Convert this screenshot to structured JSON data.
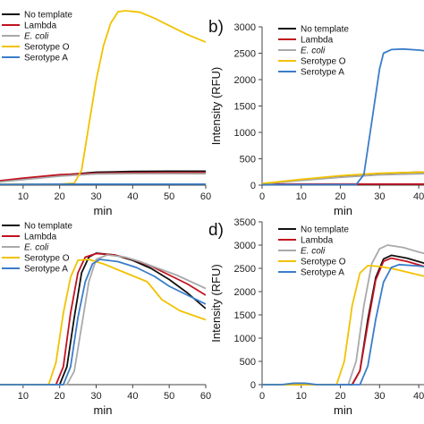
{
  "chart_data": [
    {
      "panel_label": "",
      "type": "line",
      "xlabel": "min",
      "ylabel": "",
      "xlim": [
        0,
        60
      ],
      "ylim": [
        0,
        3500
      ],
      "xticks": [
        10,
        20,
        30,
        40,
        50,
        60
      ],
      "yticks": [],
      "legend": "top-left",
      "series": [
        {
          "name": "No template",
          "color": "#111111",
          "points": [
            [
              0,
              50
            ],
            [
              10,
              120
            ],
            [
              20,
              200
            ],
            [
              30,
              260
            ],
            [
              40,
              275
            ],
            [
              50,
              280
            ],
            [
              60,
              280
            ]
          ]
        },
        {
          "name": "Lambda",
          "color": "#c1121f",
          "points": [
            [
              0,
              60
            ],
            [
              10,
              140
            ],
            [
              20,
              210
            ],
            [
              30,
              240
            ],
            [
              40,
              250
            ],
            [
              50,
              252
            ],
            [
              60,
              252
            ]
          ]
        },
        {
          "name": "E. coli",
          "color": "#a9a9a9",
          "points": [
            [
              0,
              40
            ],
            [
              10,
              110
            ],
            [
              20,
              180
            ],
            [
              30,
              225
            ],
            [
              40,
              232
            ],
            [
              50,
              232
            ],
            [
              60,
              230
            ]
          ]
        },
        {
          "name": "Serotype O",
          "color": "#f2c200",
          "points": [
            [
              0,
              20
            ],
            [
              20,
              20
            ],
            [
              24,
              40
            ],
            [
              26,
              300
            ],
            [
              28,
              1200
            ],
            [
              30,
              2100
            ],
            [
              32,
              2800
            ],
            [
              34,
              3250
            ],
            [
              36,
              3480
            ],
            [
              38,
              3500
            ],
            [
              42,
              3470
            ],
            [
              46,
              3350
            ],
            [
              50,
              3200
            ],
            [
              55,
              3020
            ],
            [
              60,
              2870
            ]
          ]
        },
        {
          "name": "Serotype A",
          "color": "#3a7dc9",
          "points": [
            [
              0,
              15
            ],
            [
              20,
              20
            ],
            [
              40,
              20
            ],
            [
              60,
              20
            ]
          ]
        }
      ]
    },
    {
      "panel_label": "b)",
      "type": "line",
      "xlabel": "min",
      "ylabel": "Intensity (RFU)",
      "xlim": [
        0,
        45
      ],
      "ylim": [
        0,
        3000
      ],
      "xticks": [
        0,
        10,
        20,
        30,
        40
      ],
      "yticks": [
        0,
        500,
        1000,
        1500,
        2000,
        2500,
        3000
      ],
      "legend": "top-left",
      "series": [
        {
          "name": "No template",
          "color": "#111111",
          "points": [
            [
              0,
              20
            ],
            [
              10,
              100
            ],
            [
              20,
              170
            ],
            [
              30,
              220
            ],
            [
              40,
              245
            ],
            [
              45,
              250
            ]
          ]
        },
        {
          "name": "Lambda",
          "color": "#c1121f",
          "points": [
            [
              0,
              20
            ],
            [
              10,
              20
            ],
            [
              20,
              20
            ],
            [
              30,
              20
            ],
            [
              45,
              20
            ]
          ]
        },
        {
          "name": "E. coli",
          "color": "#a9a9a9",
          "points": [
            [
              0,
              25
            ],
            [
              10,
              90
            ],
            [
              20,
              150
            ],
            [
              30,
              195
            ],
            [
              40,
              215
            ],
            [
              45,
              222
            ]
          ]
        },
        {
          "name": "Serotype O",
          "color": "#f2c200",
          "points": [
            [
              0,
              30
            ],
            [
              10,
              110
            ],
            [
              20,
              180
            ],
            [
              30,
              225
            ],
            [
              40,
              245
            ],
            [
              45,
              250
            ]
          ]
        },
        {
          "name": "Serotype A",
          "color": "#3a7dc9",
          "points": [
            [
              0,
              10
            ],
            [
              24,
              10
            ],
            [
              26,
              200
            ],
            [
              28,
              1200
            ],
            [
              30,
              2200
            ],
            [
              31,
              2500
            ],
            [
              33,
              2570
            ],
            [
              36,
              2580
            ],
            [
              40,
              2560
            ],
            [
              45,
              2520
            ]
          ]
        }
      ]
    },
    {
      "panel_label": "",
      "type": "line",
      "xlabel": "min",
      "ylabel": "",
      "xlim": [
        0,
        60
      ],
      "ylim": [
        0,
        3500
      ],
      "xticks": [
        10,
        20,
        30,
        40,
        50,
        60
      ],
      "yticks": [],
      "legend": "top-left",
      "series": [
        {
          "name": "No template",
          "color": "#111111",
          "points": [
            [
              0,
              0
            ],
            [
              20,
              0
            ],
            [
              22,
              400
            ],
            [
              24,
              1500
            ],
            [
              26,
              2500
            ],
            [
              28,
              2850
            ],
            [
              30,
              2940
            ],
            [
              35,
              2900
            ],
            [
              40,
              2780
            ],
            [
              45,
              2600
            ],
            [
              50,
              2350
            ],
            [
              55,
              2050
            ],
            [
              60,
              1700
            ]
          ]
        },
        {
          "name": "Lambda",
          "color": "#c1121f",
          "points": [
            [
              0,
              0
            ],
            [
              19,
              0
            ],
            [
              21,
              400
            ],
            [
              23,
              1600
            ],
            [
              25,
              2500
            ],
            [
              27,
              2850
            ],
            [
              30,
              2930
            ],
            [
              35,
              2900
            ],
            [
              40,
              2800
            ],
            [
              45,
              2650
            ],
            [
              50,
              2450
            ],
            [
              55,
              2250
            ],
            [
              60,
              2000
            ]
          ]
        },
        {
          "name": "E. coli",
          "color": "#a9a9a9",
          "points": [
            [
              0,
              0
            ],
            [
              22,
              0
            ],
            [
              24,
              300
            ],
            [
              26,
              1300
            ],
            [
              28,
              2300
            ],
            [
              30,
              2800
            ],
            [
              33,
              2900
            ],
            [
              38,
              2850
            ],
            [
              42,
              2750
            ],
            [
              47,
              2600
            ],
            [
              52,
              2450
            ],
            [
              56,
              2300
            ],
            [
              60,
              2150
            ]
          ]
        },
        {
          "name": "Serotype O",
          "color": "#f2c200",
          "points": [
            [
              0,
              0
            ],
            [
              17,
              0
            ],
            [
              19,
              500
            ],
            [
              21,
              1600
            ],
            [
              23,
              2400
            ],
            [
              25,
              2780
            ],
            [
              28,
              2800
            ],
            [
              32,
              2700
            ],
            [
              38,
              2500
            ],
            [
              44,
              2300
            ],
            [
              48,
              1900
            ],
            [
              53,
              1650
            ],
            [
              60,
              1450
            ]
          ]
        },
        {
          "name": "Serotype A",
          "color": "#3a7dc9",
          "points": [
            [
              0,
              0
            ],
            [
              21,
              0
            ],
            [
              23,
              400
            ],
            [
              25,
              1500
            ],
            [
              27,
              2300
            ],
            [
              29,
              2700
            ],
            [
              31,
              2800
            ],
            [
              36,
              2750
            ],
            [
              41,
              2620
            ],
            [
              46,
              2420
            ],
            [
              50,
              2200
            ],
            [
              55,
              2000
            ],
            [
              60,
              1800
            ]
          ]
        }
      ]
    },
    {
      "panel_label": "d)",
      "type": "line",
      "xlabel": "min",
      "ylabel": "Intensity (RFU)",
      "xlim": [
        0,
        45
      ],
      "ylim": [
        0,
        3500
      ],
      "xticks": [
        0,
        10,
        20,
        30,
        40
      ],
      "yticks": [
        0,
        500,
        1000,
        1500,
        2000,
        2500,
        3000,
        3500
      ],
      "legend": "top-left",
      "series": [
        {
          "name": "No template",
          "color": "#111111",
          "points": [
            [
              0,
              0
            ],
            [
              23,
              0
            ],
            [
              25,
              300
            ],
            [
              27,
              1400
            ],
            [
              29,
              2300
            ],
            [
              31,
              2700
            ],
            [
              33,
              2780
            ],
            [
              37,
              2720
            ],
            [
              41,
              2620
            ],
            [
              45,
              2530
            ]
          ]
        },
        {
          "name": "Lambda",
          "color": "#c1121f",
          "points": [
            [
              0,
              0
            ],
            [
              23,
              0
            ],
            [
              25,
              300
            ],
            [
              27,
              1300
            ],
            [
              29,
              2250
            ],
            [
              31,
              2650
            ],
            [
              33,
              2720
            ],
            [
              37,
              2650
            ],
            [
              41,
              2550
            ],
            [
              45,
              2450
            ]
          ]
        },
        {
          "name": "E. coli",
          "color": "#a9a9a9",
          "points": [
            [
              0,
              0
            ],
            [
              22,
              0
            ],
            [
              24,
              500
            ],
            [
              26,
              1700
            ],
            [
              28,
              2600
            ],
            [
              30,
              2920
            ],
            [
              32,
              3000
            ],
            [
              36,
              2950
            ],
            [
              40,
              2850
            ],
            [
              45,
              2750
            ]
          ]
        },
        {
          "name": "Serotype O",
          "color": "#f2c200",
          "points": [
            [
              0,
              0
            ],
            [
              19,
              0
            ],
            [
              21,
              500
            ],
            [
              23,
              1700
            ],
            [
              25,
              2400
            ],
            [
              27,
              2560
            ],
            [
              30,
              2540
            ],
            [
              34,
              2480
            ],
            [
              38,
              2400
            ],
            [
              42,
              2320
            ],
            [
              45,
              2280
            ]
          ]
        },
        {
          "name": "Serotype A",
          "color": "#3a7dc9",
          "points": [
            [
              0,
              0
            ],
            [
              5,
              0
            ],
            [
              8,
              30
            ],
            [
              11,
              30
            ],
            [
              14,
              0
            ],
            [
              25,
              0
            ],
            [
              27,
              400
            ],
            [
              29,
              1400
            ],
            [
              31,
              2200
            ],
            [
              33,
              2520
            ],
            [
              35,
              2580
            ],
            [
              40,
              2550
            ],
            [
              45,
              2500
            ]
          ]
        }
      ]
    }
  ]
}
